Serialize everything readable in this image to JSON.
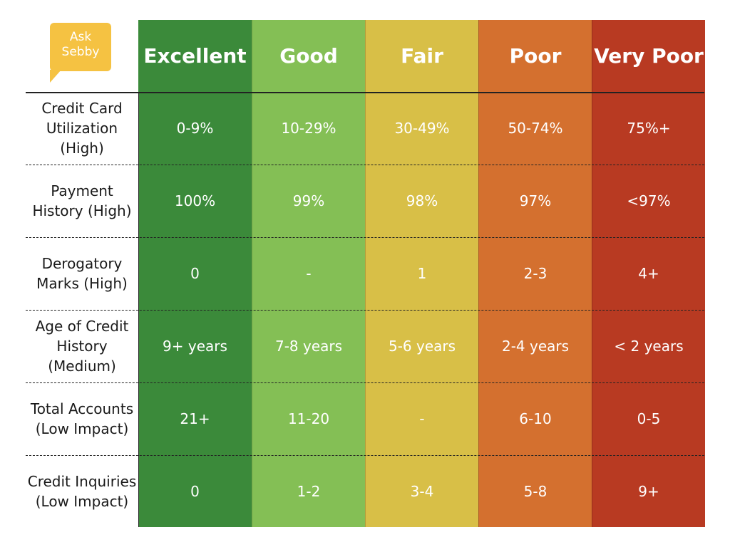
{
  "logo": {
    "line1": "Ask",
    "line2": "Sebby",
    "color": "#f5c242"
  },
  "columns": [
    {
      "label": "Excellent",
      "color": "#3b8a3a"
    },
    {
      "label": "Good",
      "color": "#84bf55"
    },
    {
      "label": "Fair",
      "color": "#d8bf47"
    },
    {
      "label": "Poor",
      "color": "#d4702f"
    },
    {
      "label": "Very Poor",
      "color": "#b83a22"
    }
  ],
  "rows": [
    {
      "label_lines": [
        "Credit Card",
        "Utilization",
        "(High)"
      ],
      "values": [
        "0-9%",
        "10-29%",
        "30-49%",
        "50-74%",
        "75%+"
      ]
    },
    {
      "label_lines": [
        "Payment",
        "History (High)"
      ],
      "values": [
        "100%",
        "99%",
        "98%",
        "97%",
        "<97%"
      ]
    },
    {
      "label_lines": [
        "Derogatory",
        "Marks (High)"
      ],
      "values": [
        "0",
        "-",
        "1",
        "2-3",
        "4+"
      ]
    },
    {
      "label_lines": [
        "Age of Credit",
        "History",
        "(Medium)"
      ],
      "values": [
        "9+ years",
        "7-8 years",
        "5-6 years",
        "2-4 years",
        "< 2 years"
      ]
    },
    {
      "label_lines": [
        "Total Accounts",
        "(Low Impact)"
      ],
      "values": [
        "21+",
        "11-20",
        "-",
        "6-10",
        "0-5"
      ]
    },
    {
      "label_lines": [
        "Credit Inquiries",
        "(Low Impact)"
      ],
      "values": [
        "0",
        "1-2",
        "3-4",
        "5-8",
        "9+"
      ]
    }
  ]
}
